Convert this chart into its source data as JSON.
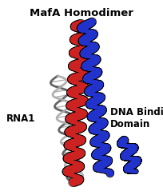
{
  "title": "MafA Homodimer",
  "label_rna": "RNA1",
  "label_dna": "DNA Binding\nDomain",
  "title_fontsize": 9.5,
  "label_fontsize": 8.5,
  "bg_color": "#ffffff",
  "red_color": "#cc2222",
  "blue_color": "#2233cc",
  "gray_color": "#888888",
  "gray_light": "#aaaaaa",
  "gray_dark": "#555555",
  "figsize": [
    2.04,
    2.44
  ],
  "dpi": 100
}
